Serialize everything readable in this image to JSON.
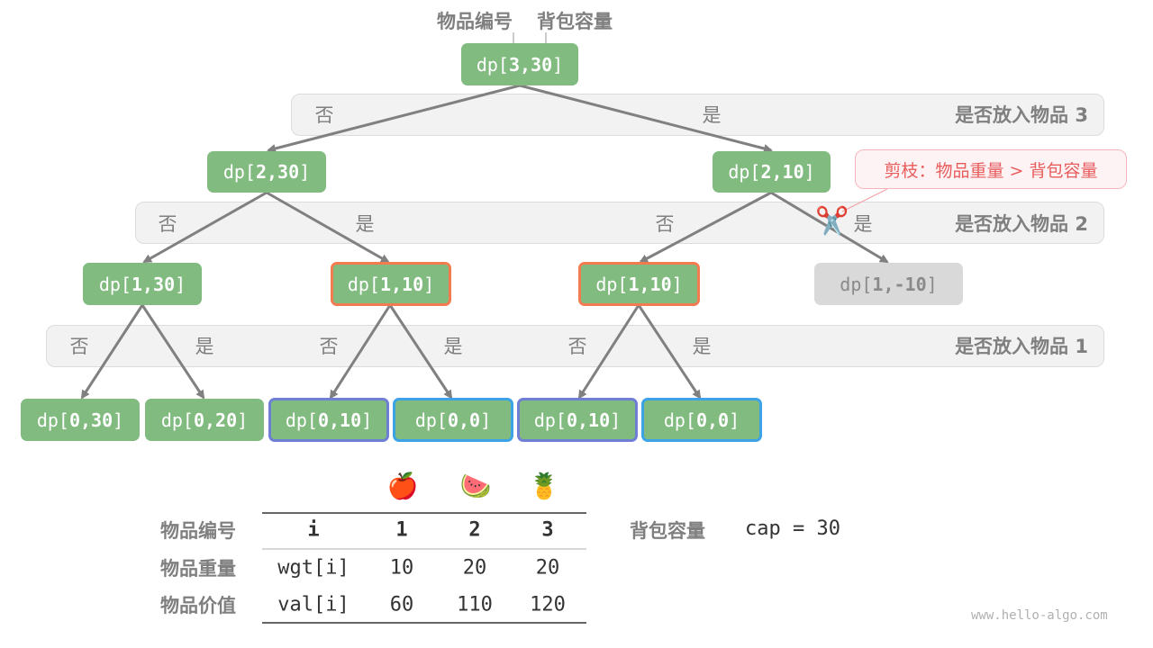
{
  "header": {
    "item_label": "物品编号",
    "capacity_label": "背包容量"
  },
  "bands": [
    {
      "title": "是否放入物品 3",
      "no": "否",
      "yes": "是"
    },
    {
      "title": "是否放入物品 2",
      "no": "否",
      "yes": "是"
    },
    {
      "title": "是否放入物品 1",
      "no": "否",
      "yes": "是"
    }
  ],
  "nodes": {
    "root": {
      "prefix": "dp[",
      "args": "3,30",
      "suffix": "]"
    },
    "l2a": {
      "prefix": "dp[",
      "args": "2,30",
      "suffix": "]"
    },
    "l2b": {
      "prefix": "dp[",
      "args": "2,10",
      "suffix": "]"
    },
    "l1a": {
      "prefix": "dp[",
      "args": "1,30",
      "suffix": "]"
    },
    "l1b": {
      "prefix": "dp[",
      "args": "1,10",
      "suffix": "]"
    },
    "l1c": {
      "prefix": "dp[",
      "args": "1,10",
      "suffix": "]"
    },
    "l1d": {
      "prefix": "dp[",
      "args": "1,-10",
      "suffix": "]"
    },
    "l0a": {
      "prefix": "dp[",
      "args": "0,30",
      "suffix": "]"
    },
    "l0b": {
      "prefix": "dp[",
      "args": "0,20",
      "suffix": "]"
    },
    "l0c": {
      "prefix": "dp[",
      "args": "0,10",
      "suffix": "]"
    },
    "l0d": {
      "prefix": "dp[",
      "args": "0,0",
      "suffix": "]"
    },
    "l0e": {
      "prefix": "dp[",
      "args": "0,10",
      "suffix": "]"
    },
    "l0f": {
      "prefix": "dp[",
      "args": "0,0",
      "suffix": "]"
    }
  },
  "callout": {
    "text": "剪枝：物品重量 > 背包容量",
    "icon": "scissors-icon",
    "color": "#e85c5c"
  },
  "colors": {
    "node": "#82bb80",
    "pruned": "#d9d9d9",
    "repeat_1_10": "#f27b50",
    "repeat_0_10": "#6f7fd6",
    "repeat_0_0": "#3ba3e6"
  },
  "table": {
    "row_labels": [
      "物品编号",
      "物品重量",
      "物品价值"
    ],
    "icons": [
      "apple",
      "watermelon",
      "pineapple"
    ],
    "header": [
      "i",
      "1",
      "2",
      "3"
    ],
    "rows": [
      [
        "wgt[i]",
        "10",
        "20",
        "20"
      ],
      [
        "val[i]",
        "60",
        "110",
        "120"
      ]
    ]
  },
  "capacity": {
    "label": "背包容量",
    "value": "cap = 30"
  },
  "watermark": "www.hello-algo.com"
}
